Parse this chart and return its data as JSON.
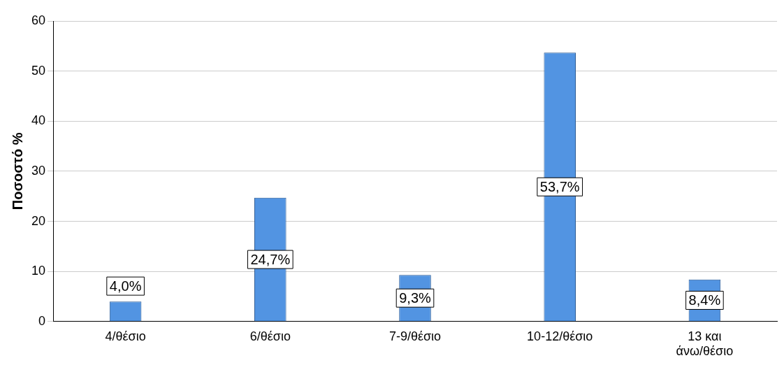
{
  "chart_data": {
    "type": "bar",
    "ylabel": "Ποσοστό %",
    "categories": [
      "4/θέσιο",
      "6/θέσιο",
      "7-9/θέσιο",
      "10-12/θέσιο",
      "13 και άνω/θέσιο"
    ],
    "values": [
      4.0,
      24.7,
      9.3,
      53.7,
      8.4
    ],
    "value_labels": [
      "4,0%",
      "24,7%",
      "9,3%",
      "53,7%",
      "8,4%"
    ],
    "color": "#5294e2",
    "ylim": [
      0,
      60
    ],
    "yticks": [
      0,
      10,
      20,
      30,
      40,
      50,
      60
    ],
    "grid": "y",
    "legend": false
  }
}
